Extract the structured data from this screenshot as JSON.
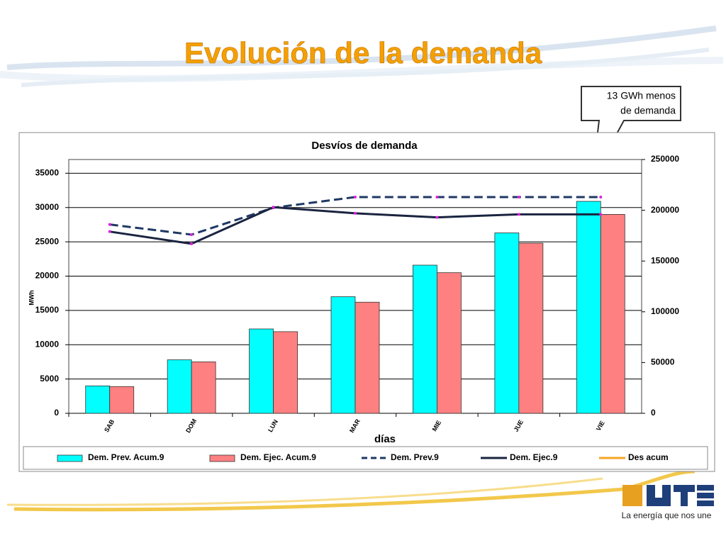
{
  "slide": {
    "title": "Evolución de la demanda",
    "callout": [
      "13 GWh menos",
      "de demanda"
    ],
    "logo": {
      "name": "UTE",
      "tagline": "La energía que nos une"
    }
  },
  "chart_data": {
    "type": "bar_line",
    "title": "Desvíos de demanda",
    "x_label": "días",
    "y_label": "MWh",
    "categories": [
      "SAB",
      "DOM",
      "LUN",
      "MAR",
      "MIE",
      "JUE",
      "VIE"
    ],
    "series": [
      {
        "name": "Dem. Prev. Acum.9",
        "kind": "bar",
        "axis": "y",
        "color": "#00ffff",
        "values": [
          4000,
          7800,
          12300,
          17000,
          21600,
          26300,
          30900
        ]
      },
      {
        "name": "Dem. Ejec. Acum.9",
        "kind": "bar",
        "axis": "y",
        "color": "#ff8080",
        "values": [
          3900,
          7500,
          11900,
          16200,
          20500,
          24800,
          29000
        ]
      },
      {
        "name": "Dem. Prev.9",
        "kind": "line",
        "style": "dashed",
        "axis": "y2",
        "color": "#1f3864",
        "values": [
          186000,
          176000,
          202500,
          213000,
          213000,
          213000,
          213000
        ]
      },
      {
        "name": "Dem. Ejec.9",
        "kind": "line",
        "style": "solid",
        "axis": "y2",
        "color": "#1a2440",
        "values": [
          179000,
          167000,
          203000,
          197000,
          193000,
          196000,
          196000
        ]
      },
      {
        "name": "Des acum",
        "kind": "line",
        "style": "solid",
        "axis": "y2",
        "color": "#f5a623",
        "values": [
          null,
          null,
          null,
          null,
          null,
          null,
          null
        ]
      }
    ],
    "ylim": [
      0,
      37000
    ],
    "yticks": [
      0,
      5000,
      10000,
      15000,
      20000,
      25000,
      30000,
      35000
    ],
    "y2lim": [
      0,
      250000
    ],
    "y2ticks": [
      0,
      50000,
      100000,
      150000,
      200000,
      250000
    ],
    "grid": true,
    "legend": "bottom"
  }
}
